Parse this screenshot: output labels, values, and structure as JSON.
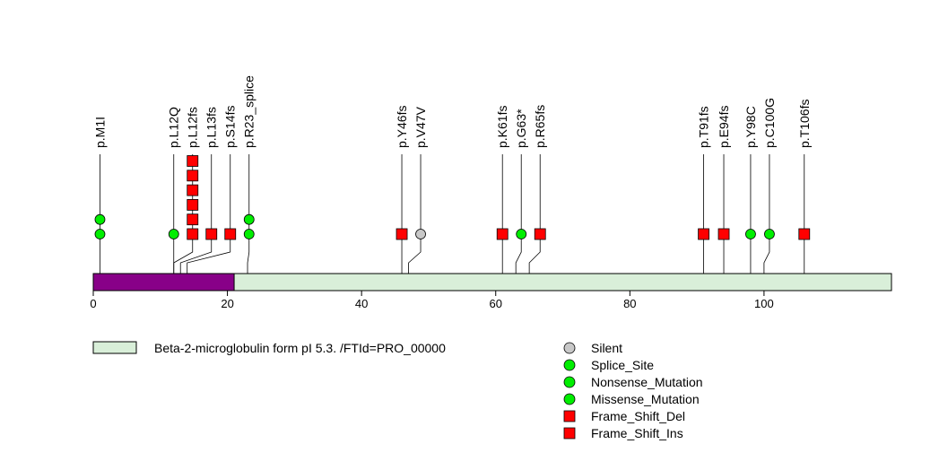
{
  "chart_data": {
    "type": "lollipop",
    "x_axis": {
      "min": 0,
      "max": 119,
      "ticks": [
        0,
        20,
        40,
        60,
        80,
        100
      ]
    },
    "domains": [
      {
        "name": "",
        "start": 0,
        "end": 21,
        "color": "#880088"
      },
      {
        "name": "Beta-2-microglobulin form pI 5.3. /FTId=PRO_00000",
        "start": 0,
        "end": 119,
        "color": "#d9efd9"
      }
    ],
    "mutation_types": {
      "Silent": {
        "color": "#c8c8c8",
        "shape": "circle"
      },
      "Splice_Site": {
        "color": "#00ee00",
        "shape": "circle"
      },
      "Nonsense_Mutation": {
        "color": "#00ee00",
        "shape": "circle"
      },
      "Missense_Mutation": {
        "color": "#00ee00",
        "shape": "circle"
      },
      "Frame_Shift_Del": {
        "color": "#ff0000",
        "shape": "square"
      },
      "Frame_Shift_Ins": {
        "color": "#ff0000",
        "shape": "square"
      }
    },
    "mutations": [
      {
        "label": "p.M1I",
        "position": 1,
        "count": 2,
        "type": "Missense_Mutation"
      },
      {
        "label": "p.L12Q",
        "position": 12,
        "count": 1,
        "type": "Missense_Mutation"
      },
      {
        "label": "p.L12fs",
        "position": 12,
        "count": 6,
        "type": "Frame_Shift_Del"
      },
      {
        "label": "p.L13fs",
        "position": 13,
        "count": 1,
        "type": "Frame_Shift_Del"
      },
      {
        "label": "p.S14fs",
        "position": 14,
        "count": 1,
        "type": "Frame_Shift_Del"
      },
      {
        "label": "p.R23_splice",
        "position": 23,
        "count": 2,
        "type": "Splice_Site"
      },
      {
        "label": "p.Y46fs",
        "position": 46,
        "count": 1,
        "type": "Frame_Shift_Del"
      },
      {
        "label": "p.V47V",
        "position": 47,
        "count": 1,
        "type": "Silent"
      },
      {
        "label": "p.K61fs",
        "position": 61,
        "count": 1,
        "type": "Frame_Shift_Del"
      },
      {
        "label": "p.G63*",
        "position": 63,
        "count": 1,
        "type": "Nonsense_Mutation"
      },
      {
        "label": "p.R65fs",
        "position": 65,
        "count": 1,
        "type": "Frame_Shift_Del"
      },
      {
        "label": "p.T91fs",
        "position": 91,
        "count": 1,
        "type": "Frame_Shift_Del"
      },
      {
        "label": "p.E94fs",
        "position": 94,
        "count": 1,
        "type": "Frame_Shift_Del"
      },
      {
        "label": "p.Y98C",
        "position": 98,
        "count": 1,
        "type": "Missense_Mutation"
      },
      {
        "label": "p.C100G",
        "position": 100,
        "count": 1,
        "type": "Missense_Mutation"
      },
      {
        "label": "p.T106fs",
        "position": 106,
        "count": 1,
        "type": "Frame_Shift_Del"
      }
    ],
    "domain_legend": [
      {
        "label": "Beta-2-microglobulin form pI 5.3. /FTId=PRO_00000",
        "color": "#d9efd9"
      }
    ],
    "type_legend": [
      {
        "label": "Silent",
        "color": "#c8c8c8",
        "shape": "circle"
      },
      {
        "label": "Splice_Site",
        "color": "#00ee00",
        "shape": "circle"
      },
      {
        "label": "Nonsense_Mutation",
        "color": "#00ee00",
        "shape": "circle"
      },
      {
        "label": "Missense_Mutation",
        "color": "#00ee00",
        "shape": "circle"
      },
      {
        "label": "Frame_Shift_Del",
        "color": "#ff0000",
        "shape": "square"
      },
      {
        "label": "Frame_Shift_Ins",
        "color": "#ff0000",
        "shape": "square"
      }
    ]
  }
}
